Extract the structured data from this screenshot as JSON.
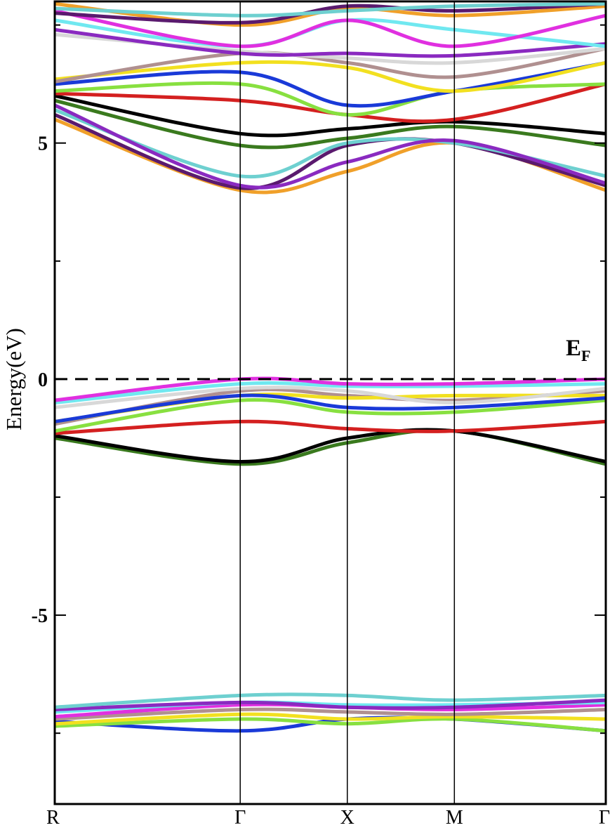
{
  "chart_data": {
    "type": "line",
    "ylabel": "Energy(eV)",
    "ylim": [
      -9,
      8
    ],
    "yticks": [
      -5,
      0,
      5
    ],
    "ytick_labels": [
      "-5",
      "0",
      "5"
    ],
    "y_minor_ticks": [
      -7.5,
      -2.5,
      2.5,
      7.5
    ],
    "x_kpoints": [
      {
        "label": "R",
        "pos": 0
      },
      {
        "label": "Γ",
        "pos": 0.866
      },
      {
        "label": "X",
        "pos": 1.366
      },
      {
        "label": "M",
        "pos": 1.866
      },
      {
        "label": "Γ",
        "pos": 2.573
      }
    ],
    "fermi_level": {
      "value": 0,
      "label": "E",
      "subscript": "F",
      "style": "dashed"
    },
    "grid": false,
    "series": [
      {
        "color": "#f0a02a",
        "x": [
          0,
          0.866,
          1.366,
          1.866,
          2.573
        ],
        "y": [
          5.5,
          4.0,
          4.4,
          5.0,
          4.0
        ]
      },
      {
        "color": "#5a1a6e",
        "x": [
          0,
          0.866,
          1.366,
          1.866,
          2.573
        ],
        "y": [
          5.6,
          4.05,
          4.95,
          5.0,
          4.1
        ]
      },
      {
        "color": "#6ed0d0",
        "x": [
          0,
          0.866,
          1.366,
          1.866,
          2.573
        ],
        "y": [
          5.7,
          4.3,
          5.0,
          5.0,
          4.3
        ]
      },
      {
        "color": "#8a2ac0",
        "x": [
          0,
          0.866,
          1.366,
          1.866,
          2.573
        ],
        "y": [
          5.8,
          4.1,
          4.6,
          5.05,
          4.15
        ]
      },
      {
        "color": "#3a7a1e",
        "x": [
          0,
          0.866,
          1.366,
          1.866,
          2.573
        ],
        "y": [
          5.9,
          4.95,
          5.1,
          5.35,
          4.95
        ]
      },
      {
        "color": "#000000",
        "x": [
          0,
          0.866,
          1.366,
          1.866,
          2.573
        ],
        "y": [
          6.0,
          5.2,
          5.3,
          5.45,
          5.2
        ]
      },
      {
        "color": "#d42020",
        "x": [
          0,
          0.866,
          1.366,
          1.866,
          2.573
        ],
        "y": [
          6.05,
          5.9,
          5.6,
          5.5,
          6.25
        ]
      },
      {
        "color": "#88e040",
        "x": [
          0,
          0.866,
          1.366,
          1.866,
          2.573
        ],
        "y": [
          6.1,
          6.25,
          5.6,
          6.1,
          6.25
        ]
      },
      {
        "color": "#1a3ad8",
        "x": [
          0,
          0.866,
          1.366,
          1.866,
          2.573
        ],
        "y": [
          6.25,
          6.5,
          5.8,
          6.1,
          6.7
        ]
      },
      {
        "color": "#f2e020",
        "x": [
          0,
          0.866,
          1.366,
          1.866,
          2.573
        ],
        "y": [
          6.35,
          6.7,
          6.6,
          6.1,
          6.7
        ]
      },
      {
        "color": "#b09090",
        "x": [
          0,
          0.866,
          1.366,
          1.866,
          2.573
        ],
        "y": [
          6.3,
          6.9,
          6.7,
          6.4,
          7.0
        ]
      },
      {
        "color": "#d8d8d8",
        "x": [
          0,
          0.866,
          1.366,
          1.866,
          2.573
        ],
        "y": [
          7.3,
          6.95,
          6.8,
          6.7,
          7.0
        ]
      },
      {
        "color": "#8a2ac0",
        "x": [
          0,
          0.866,
          1.366,
          1.866,
          2.573
        ],
        "y": [
          7.4,
          6.9,
          6.9,
          6.85,
          7.1
        ]
      },
      {
        "color": "#70e8f0",
        "x": [
          0,
          0.866,
          1.366,
          1.866,
          2.573
        ],
        "y": [
          7.6,
          7.05,
          7.6,
          7.4,
          7.05
        ]
      },
      {
        "color": "#e030e0",
        "x": [
          0,
          0.866,
          1.366,
          1.866,
          2.573
        ],
        "y": [
          7.8,
          7.05,
          7.6,
          7.05,
          7.7
        ]
      },
      {
        "color": "#f0a02a",
        "x": [
          0,
          0.866,
          1.366,
          1.866,
          2.573
        ],
        "y": [
          7.95,
          7.5,
          7.85,
          7.7,
          7.9
        ]
      },
      {
        "color": "#5a1a6e",
        "x": [
          0,
          0.866,
          1.366,
          1.866,
          2.573
        ],
        "y": [
          7.75,
          7.55,
          7.9,
          7.8,
          7.95
        ]
      },
      {
        "color": "#6ed0d0",
        "x": [
          0,
          0.866,
          1.366,
          1.866,
          2.573
        ],
        "y": [
          7.85,
          7.7,
          7.8,
          7.9,
          7.95
        ]
      },
      {
        "color": "#3a7a1e",
        "x": [
          0,
          0.866,
          1.366,
          1.866,
          2.573
        ],
        "y": [
          -1.25,
          -1.8,
          -1.35,
          -1.1,
          -1.8
        ]
      },
      {
        "color": "#000000",
        "x": [
          0,
          0.866,
          1.366,
          1.866,
          2.573
        ],
        "y": [
          -1.2,
          -1.75,
          -1.25,
          -1.1,
          -1.75
        ]
      },
      {
        "color": "#d42020",
        "x": [
          0,
          0.866,
          1.366,
          1.866,
          2.573
        ],
        "y": [
          -1.15,
          -0.9,
          -1.05,
          -1.1,
          -0.9
        ]
      },
      {
        "color": "#88e040",
        "x": [
          0,
          0.866,
          1.366,
          1.866,
          2.573
        ],
        "y": [
          -1.1,
          -0.45,
          -0.7,
          -0.7,
          -0.45
        ]
      },
      {
        "color": "#b09090",
        "x": [
          0,
          0.866,
          1.366,
          1.866,
          2.573
        ],
        "y": [
          -0.95,
          -0.25,
          -0.35,
          -0.45,
          -0.25
        ]
      },
      {
        "color": "#f2e020",
        "x": [
          0,
          0.866,
          1.366,
          1.866,
          2.573
        ],
        "y": [
          -0.9,
          -0.35,
          -0.4,
          -0.35,
          -0.35
        ]
      },
      {
        "color": "#1a3ad8",
        "x": [
          0,
          0.866,
          1.366,
          1.866,
          2.573
        ],
        "y": [
          -0.9,
          -0.35,
          -0.6,
          -0.6,
          -0.4
        ]
      },
      {
        "color": "#d8d8d8",
        "x": [
          0,
          0.866,
          1.366,
          1.866,
          2.573
        ],
        "y": [
          -0.6,
          -0.2,
          -0.25,
          -0.5,
          -0.2
        ]
      },
      {
        "color": "#70e8f0",
        "x": [
          0,
          0.866,
          1.366,
          1.866,
          2.573
        ],
        "y": [
          -0.5,
          -0.1,
          -0.15,
          -0.15,
          -0.1
        ]
      },
      {
        "color": "#e030e0",
        "x": [
          0,
          0.866,
          1.366,
          1.866,
          2.573
        ],
        "y": [
          -0.45,
          0.0,
          -0.1,
          -0.1,
          0.0
        ]
      },
      {
        "color": "#1a3ad8",
        "x": [
          0,
          0.866,
          1.366,
          1.866,
          2.573
        ],
        "y": [
          -7.25,
          -7.45,
          -7.2,
          -7.2,
          -7.45
        ]
      },
      {
        "color": "#88e040",
        "x": [
          0,
          0.866,
          1.366,
          1.866,
          2.573
        ],
        "y": [
          -7.35,
          -7.2,
          -7.3,
          -7.2,
          -7.45
        ]
      },
      {
        "color": "#f2e020",
        "x": [
          0,
          0.866,
          1.366,
          1.866,
          2.573
        ],
        "y": [
          -7.3,
          -7.1,
          -7.2,
          -7.15,
          -7.2
        ]
      },
      {
        "color": "#b09090",
        "x": [
          0,
          0.866,
          1.366,
          1.866,
          2.573
        ],
        "y": [
          -7.2,
          -7.0,
          -7.05,
          -7.1,
          -7.0
        ]
      },
      {
        "color": "#e030e0",
        "x": [
          0,
          0.866,
          1.366,
          1.866,
          2.573
        ],
        "y": [
          -7.15,
          -6.9,
          -6.95,
          -7.0,
          -6.9
        ]
      },
      {
        "color": "#70e8f0",
        "x": [
          0,
          0.866,
          1.366,
          1.866,
          2.573
        ],
        "y": [
          -7.05,
          -6.85,
          -6.9,
          -6.9,
          -6.85
        ]
      },
      {
        "color": "#8a2ac0",
        "x": [
          0,
          0.866,
          1.366,
          1.866,
          2.573
        ],
        "y": [
          -7.0,
          -6.85,
          -6.95,
          -6.95,
          -6.8
        ]
      },
      {
        "color": "#6ed0d0",
        "x": [
          0,
          0.866,
          1.366,
          1.866,
          2.573
        ],
        "y": [
          -6.95,
          -6.7,
          -6.7,
          -6.8,
          -6.7
        ]
      }
    ]
  }
}
